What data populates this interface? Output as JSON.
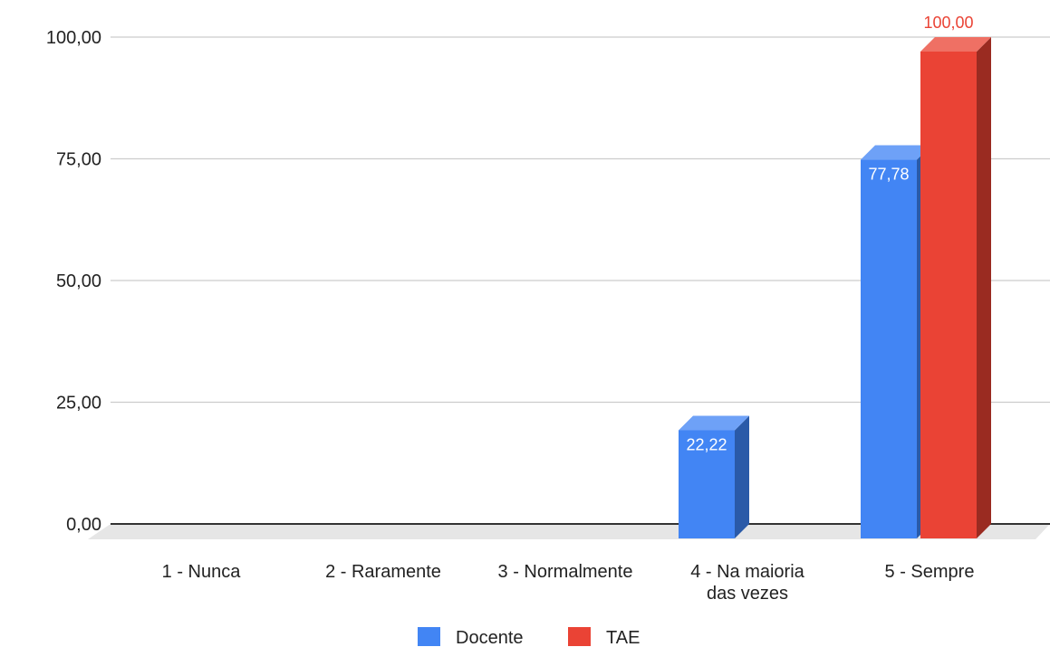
{
  "chart_data": {
    "type": "bar",
    "categories": [
      [
        "1 - Nunca"
      ],
      [
        "2 - Raramente"
      ],
      [
        "3 - Normalmente"
      ],
      [
        "4 - Na maioria",
        "das vezes"
      ],
      [
        "5 - Sempre"
      ]
    ],
    "series": [
      {
        "name": "Docente",
        "color": "#4285f4",
        "side_color": "#2a5aa8",
        "top_color": "#6ea1f7",
        "values": [
          0,
          0,
          0,
          22.22,
          77.78
        ],
        "labels": [
          "",
          "",
          "",
          "22,22",
          "77,78"
        ],
        "label_color": "#ffffff",
        "label_inside": true
      },
      {
        "name": "TAE",
        "color": "#ea4335",
        "side_color": "#9a2b21",
        "top_color": "#ef7064",
        "values": [
          0,
          0,
          0,
          0,
          100
        ],
        "labels": [
          "",
          "",
          "",
          "",
          "100,00"
        ],
        "label_color": "#ea4335",
        "label_inside": false
      }
    ],
    "yticks": [
      "0,00",
      "25,00",
      "50,00",
      "75,00",
      "100,00"
    ],
    "ytick_values": [
      0,
      25,
      50,
      75,
      100
    ],
    "ylim": [
      0,
      100
    ],
    "legend_position": "bottom",
    "grid": true,
    "perspective": "3d"
  }
}
